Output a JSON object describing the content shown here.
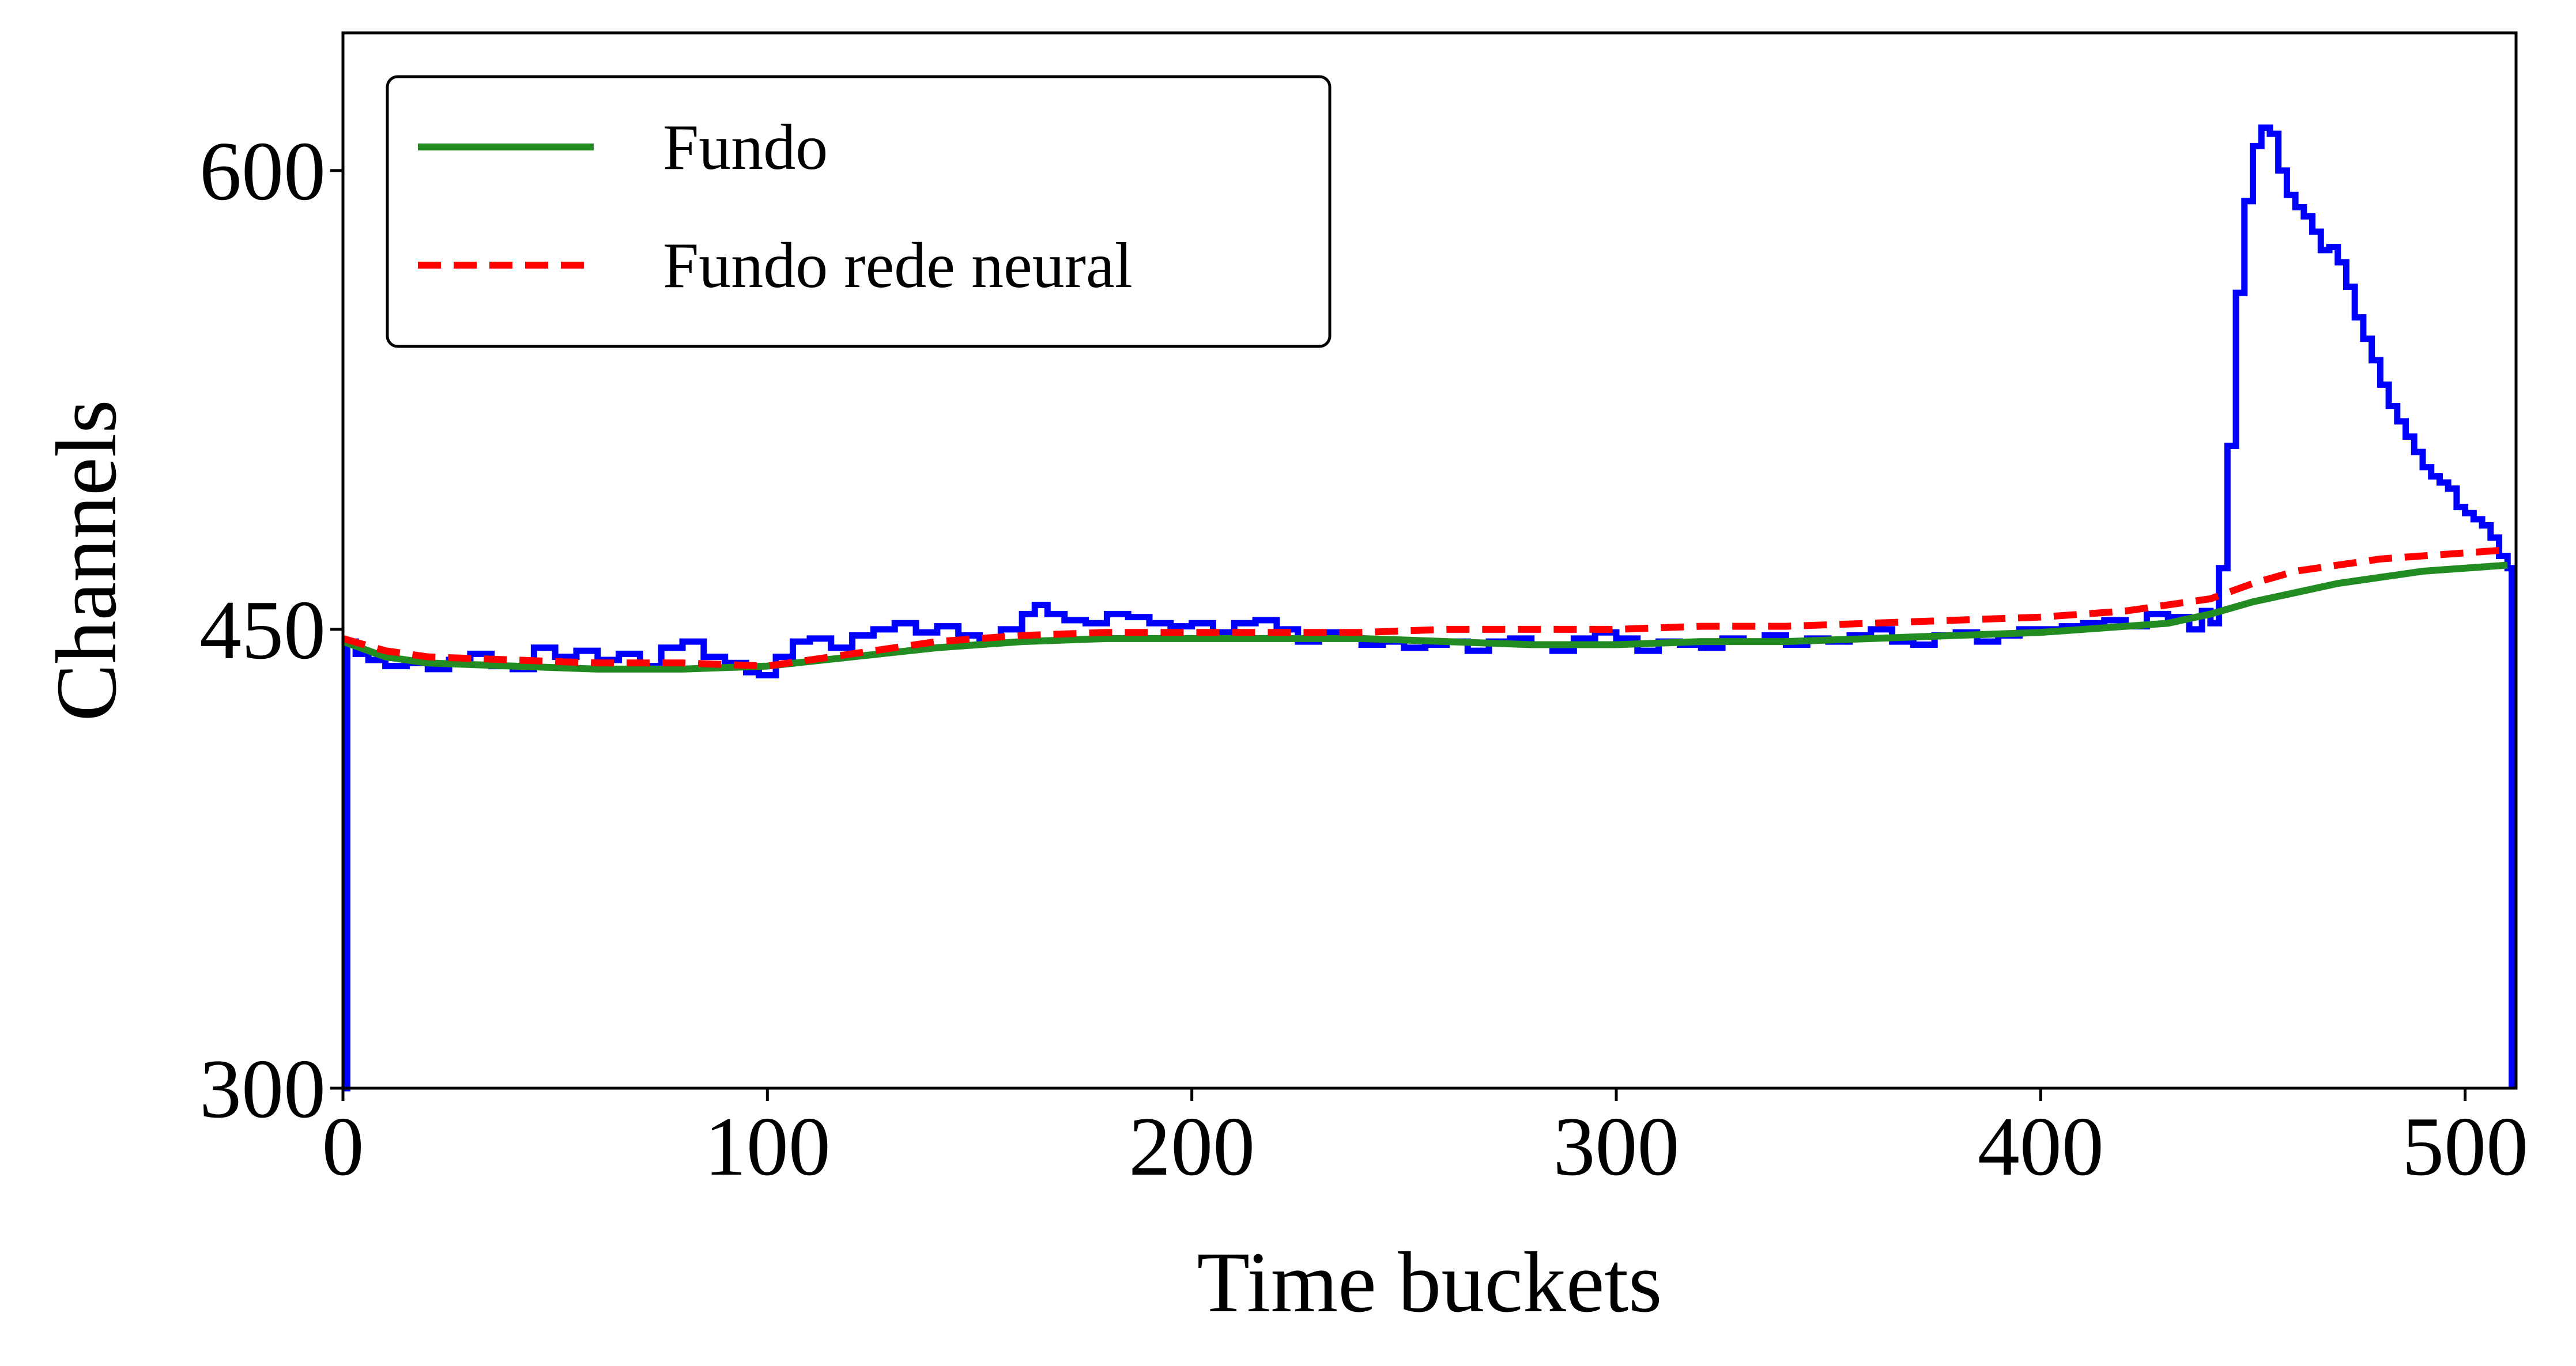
{
  "chart_data": {
    "type": "line",
    "title": "",
    "xlabel": "Time buckets",
    "ylabel": "Channels",
    "xlim": [
      0,
      512
    ],
    "ylim": [
      300,
      645
    ],
    "xticks": [
      0,
      100,
      200,
      300,
      400,
      500
    ],
    "yticks": [
      300,
      450,
      600
    ],
    "xtick_labels": [
      "0",
      "100",
      "200",
      "300",
      "400",
      "500"
    ],
    "ytick_labels": [
      "300",
      "450",
      "600"
    ],
    "grid": false,
    "legend_position": "top-left",
    "series": [
      {
        "name": "",
        "color": "#0000ff",
        "style": "step",
        "x": [
          0,
          1,
          3,
          6,
          10,
          15,
          20,
          25,
          30,
          35,
          40,
          45,
          50,
          55,
          60,
          65,
          70,
          75,
          80,
          85,
          90,
          95,
          98,
          102,
          106,
          110,
          115,
          120,
          125,
          130,
          135,
          140,
          145,
          150,
          155,
          160,
          163,
          166,
          170,
          175,
          180,
          185,
          190,
          195,
          200,
          205,
          210,
          215,
          220,
          225,
          230,
          235,
          240,
          245,
          250,
          255,
          260,
          265,
          270,
          275,
          280,
          285,
          290,
          295,
          300,
          305,
          310,
          315,
          320,
          325,
          330,
          335,
          340,
          345,
          350,
          355,
          360,
          365,
          370,
          375,
          380,
          385,
          390,
          395,
          400,
          405,
          410,
          415,
          420,
          425,
          430,
          435,
          438,
          440,
          442,
          444,
          446,
          448,
          450,
          452,
          454,
          456,
          458,
          460,
          462,
          464,
          466,
          468,
          470,
          472,
          474,
          476,
          478,
          480,
          482,
          484,
          486,
          488,
          490,
          492,
          494,
          496,
          498,
          500,
          502,
          504,
          506,
          508,
          510,
          511
        ],
        "y": [
          300,
          446,
          442,
          440,
          438,
          439,
          437,
          440,
          442,
          438,
          437,
          444,
          441,
          443,
          440,
          442,
          438,
          444,
          446,
          441,
          439,
          436,
          435,
          441,
          446,
          447,
          444,
          448,
          450,
          452,
          449,
          451,
          448,
          447,
          450,
          455,
          458,
          455,
          453,
          452,
          455,
          454,
          452,
          451,
          452,
          449,
          452,
          453,
          450,
          446,
          449,
          447,
          445,
          446,
          444,
          445,
          446,
          443,
          446,
          447,
          445,
          443,
          447,
          449,
          447,
          443,
          446,
          445,
          444,
          447,
          446,
          448,
          445,
          447,
          446,
          448,
          450,
          446,
          445,
          448,
          449,
          446,
          448,
          450,
          450,
          451,
          452,
          453,
          451,
          455,
          454,
          450,
          456,
          452,
          470,
          510,
          560,
          590,
          608,
          614,
          612,
          600,
          592,
          588,
          585,
          580,
          574,
          575,
          570,
          562,
          552,
          545,
          538,
          530,
          523,
          518,
          513,
          508,
          503,
          500,
          498,
          496,
          490,
          488,
          486,
          484,
          480,
          474,
          470,
          300
        ]
      },
      {
        "name": "Fundo",
        "color": "#228b22",
        "style": "solid",
        "x": [
          0,
          10,
          20,
          40,
          60,
          80,
          100,
          120,
          140,
          160,
          180,
          200,
          220,
          240,
          260,
          280,
          300,
          320,
          340,
          360,
          380,
          400,
          420,
          430,
          440,
          450,
          460,
          470,
          480,
          490,
          500,
          510
        ],
        "y": [
          446,
          441,
          439,
          438,
          437,
          437,
          438,
          441,
          444,
          446,
          447,
          447,
          447,
          447,
          446,
          445,
          445,
          446,
          446,
          447,
          448,
          449,
          451,
          452,
          455,
          459,
          462,
          465,
          467,
          469,
          470,
          471
        ]
      },
      {
        "name": "Fundo rede neural",
        "color": "#ff0000",
        "style": "dashed",
        "x": [
          0,
          10,
          20,
          40,
          60,
          80,
          100,
          120,
          140,
          160,
          180,
          200,
          220,
          240,
          260,
          280,
          300,
          320,
          340,
          360,
          380,
          400,
          420,
          430,
          440,
          450,
          460,
          470,
          480,
          490,
          500,
          510
        ],
        "y": [
          447,
          443,
          441,
          440,
          439,
          439,
          438,
          442,
          446,
          448,
          449,
          449,
          449,
          449,
          450,
          450,
          450,
          451,
          451,
          452,
          453,
          454,
          456,
          458,
          460,
          465,
          469,
          471,
          473,
          474,
          475,
          476
        ]
      }
    ]
  }
}
